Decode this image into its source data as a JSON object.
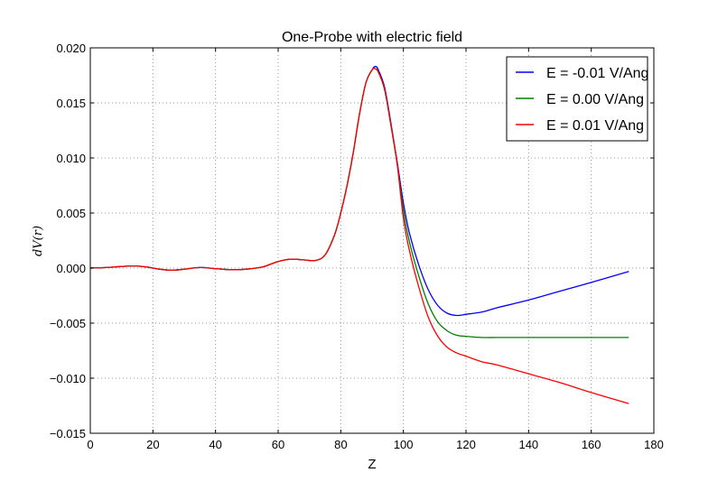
{
  "chart_data": {
    "type": "line",
    "title": "One-Probe with electric field",
    "xlabel": "Z",
    "ylabel": "dV(r)",
    "xlim": [
      0,
      180
    ],
    "ylim": [
      -0.015,
      0.02
    ],
    "xticks": [
      0,
      20,
      40,
      60,
      80,
      100,
      120,
      140,
      160,
      180
    ],
    "xtick_labels": [
      "0",
      "20",
      "40",
      "60",
      "80",
      "100",
      "120",
      "140",
      "160",
      "180"
    ],
    "yticks": [
      -0.015,
      -0.01,
      -0.005,
      0.0,
      0.005,
      0.01,
      0.015,
      0.02
    ],
    "ytick_labels": [
      "−0.015",
      "−0.010",
      "−0.005",
      "0.000",
      "0.005",
      "0.010",
      "0.015",
      "0.020"
    ],
    "grid": true,
    "legend_position": "top-right",
    "shared_x": [
      0,
      5,
      10,
      14,
      18,
      22,
      26,
      30,
      35,
      40,
      45,
      50,
      55,
      60,
      64,
      68,
      72,
      75,
      78,
      80,
      82,
      84,
      86,
      88,
      90,
      91,
      92,
      94,
      96,
      98
    ],
    "shared_y": [
      0,
      5e-05,
      0.00015,
      0.0002,
      0.0001,
      -0.0001,
      -0.0002,
      -0.0001,
      5e-05,
      -5e-05,
      -0.00015,
      -0.0001,
      0.0001,
      0.0006,
      0.0008,
      0.00075,
      0.0007,
      0.0012,
      0.003,
      0.005,
      0.0075,
      0.0105,
      0.014,
      0.0168,
      0.018,
      0.0181,
      0.0178,
      0.0162,
      0.013,
      0.0095
    ],
    "series": [
      {
        "name": "E = -0.01 V/Ang",
        "color": "#0000ff",
        "x": [
          100,
          102,
          105,
          108,
          111,
          114,
          117,
          120,
          125,
          130,
          140,
          150,
          160,
          172
        ],
        "y": [
          0.0059,
          0.0031,
          0.0002,
          -0.002,
          -0.0034,
          -0.0041,
          -0.0043,
          -0.0042,
          -0.004,
          -0.0036,
          -0.0029,
          -0.0021,
          -0.0013,
          -0.0003
        ]
      },
      {
        "name": "E =  0.00 V/Ang",
        "color": "#008000",
        "x": [
          100,
          102,
          105,
          108,
          111,
          114,
          117,
          120,
          125,
          130,
          140,
          150,
          160,
          172
        ],
        "y": [
          0.0052,
          0.0023,
          -0.0008,
          -0.0033,
          -0.0049,
          -0.0057,
          -0.0061,
          -0.0062,
          -0.0063,
          -0.0063,
          -0.0063,
          -0.0063,
          -0.0063,
          -0.0063
        ]
      },
      {
        "name": "E =  0.01 V/Ang",
        "color": "#ff0000",
        "x": [
          100,
          102,
          105,
          108,
          111,
          114,
          117,
          120,
          125,
          130,
          140,
          150,
          160,
          172
        ],
        "y": [
          0.0045,
          0.0015,
          -0.0018,
          -0.0045,
          -0.0062,
          -0.0072,
          -0.0077,
          -0.008,
          -0.0085,
          -0.0088,
          -0.0096,
          -0.0104,
          -0.0113,
          -0.0123
        ]
      }
    ]
  }
}
